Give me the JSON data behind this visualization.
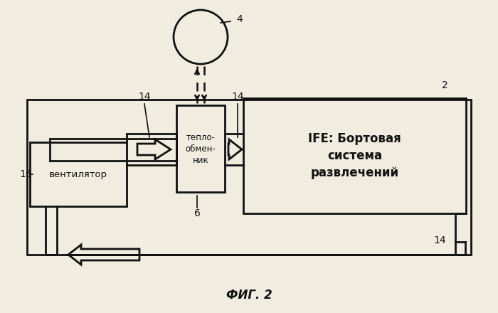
{
  "bg_color": "#f0ece0",
  "title": "ФИГ. 2",
  "ventilator_text": "вентилятор",
  "heat_exchanger_text": "тепло-\nобмен-\nник",
  "ife_text": "IFE: Бортовая\nсистема\nразвлечений"
}
